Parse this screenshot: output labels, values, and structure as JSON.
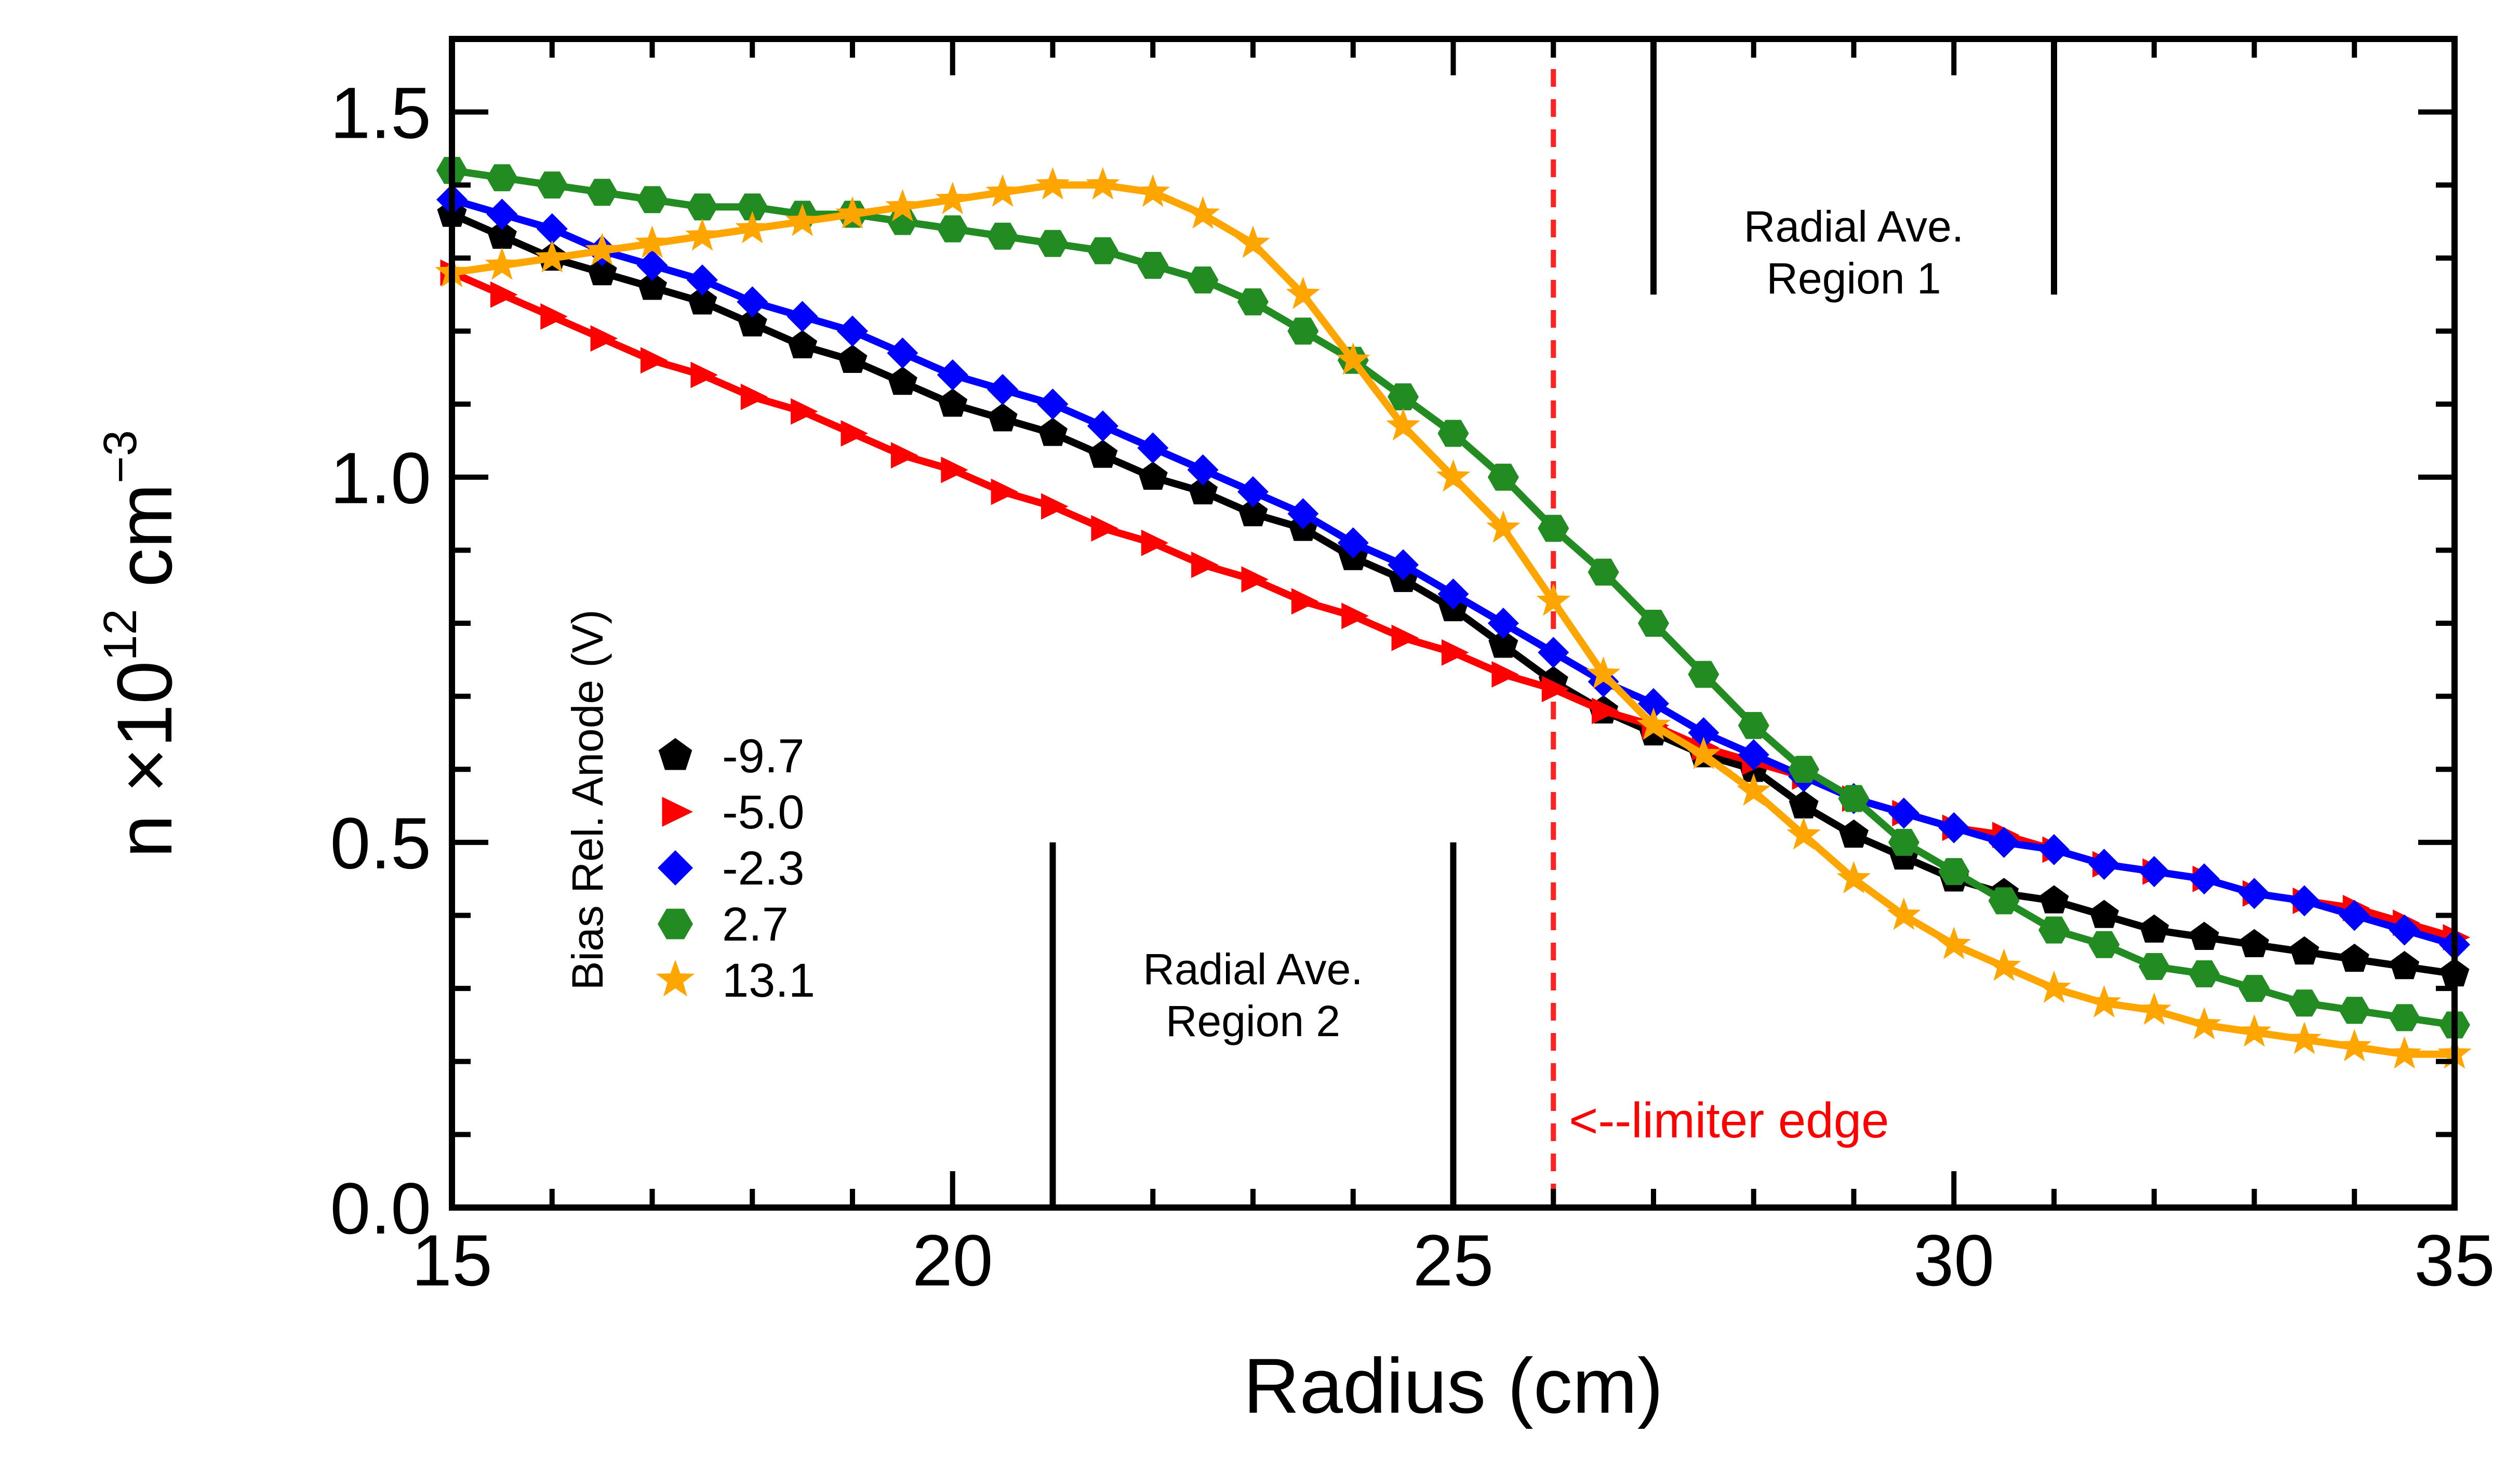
{
  "chart_data": {
    "type": "line",
    "xlabel": "Radius (cm)",
    "ylabel": {
      "base": "n ×10",
      "exp": "12",
      "unit": " cm",
      "unit_exp": "−3"
    },
    "xlim": [
      15,
      35
    ],
    "ylim": [
      0,
      1.6
    ],
    "x_ticks": [
      "15",
      "20",
      "25",
      "30",
      "35"
    ],
    "y_ticks": [
      "0.0",
      "0.5",
      "1.0",
      "1.5"
    ],
    "grid": false,
    "legend_title": "Bias Rel. Anode (V)",
    "legend_position": "lower-left",
    "x": [
      15.0,
      15.5,
      16.0,
      16.5,
      17.0,
      17.5,
      18.0,
      18.5,
      19.0,
      19.5,
      20.0,
      20.5,
      21.0,
      21.5,
      22.0,
      22.5,
      23.0,
      23.5,
      24.0,
      24.5,
      25.0,
      25.5,
      26.0,
      26.5,
      27.0,
      27.5,
      28.0,
      28.5,
      29.0,
      29.5,
      30.0,
      30.5,
      31.0,
      31.5,
      32.0,
      32.5,
      33.0,
      33.5,
      34.0,
      34.5,
      35.0
    ],
    "series": [
      {
        "name": "-9.7",
        "color": "#000000",
        "marker": "pentagon",
        "values": [
          1.36,
          1.33,
          1.3,
          1.28,
          1.26,
          1.24,
          1.21,
          1.18,
          1.16,
          1.13,
          1.1,
          1.08,
          1.06,
          1.03,
          1.0,
          0.98,
          0.95,
          0.93,
          0.89,
          0.86,
          0.82,
          0.77,
          0.72,
          0.68,
          0.65,
          0.62,
          0.6,
          0.55,
          0.51,
          0.48,
          0.45,
          0.43,
          0.42,
          0.4,
          0.38,
          0.37,
          0.36,
          0.35,
          0.34,
          0.33,
          0.32
        ]
      },
      {
        "name": "-5.0",
        "color": "#ff0000",
        "marker": "triangle-right",
        "values": [
          1.28,
          1.25,
          1.22,
          1.19,
          1.16,
          1.14,
          1.11,
          1.09,
          1.06,
          1.03,
          1.01,
          0.98,
          0.96,
          0.93,
          0.91,
          0.88,
          0.86,
          0.83,
          0.81,
          0.78,
          0.76,
          0.73,
          0.71,
          0.68,
          0.66,
          0.63,
          0.61,
          0.59,
          0.56,
          0.54,
          0.52,
          0.51,
          0.49,
          0.47,
          0.46,
          0.45,
          0.43,
          0.42,
          0.41,
          0.39,
          0.37
        ]
      },
      {
        "name": "-2.3",
        "color": "#0000ff",
        "marker": "diamond",
        "values": [
          1.38,
          1.36,
          1.34,
          1.31,
          1.29,
          1.27,
          1.24,
          1.22,
          1.2,
          1.17,
          1.14,
          1.12,
          1.1,
          1.07,
          1.04,
          1.01,
          0.98,
          0.95,
          0.91,
          0.88,
          0.84,
          0.8,
          0.76,
          0.72,
          0.69,
          0.65,
          0.62,
          0.59,
          0.56,
          0.54,
          0.52,
          0.5,
          0.49,
          0.47,
          0.46,
          0.45,
          0.43,
          0.42,
          0.4,
          0.38,
          0.36
        ]
      },
      {
        "name": "2.7",
        "color": "#228b22",
        "marker": "hexagon",
        "values": [
          1.42,
          1.41,
          1.4,
          1.39,
          1.38,
          1.37,
          1.37,
          1.36,
          1.36,
          1.35,
          1.34,
          1.33,
          1.32,
          1.31,
          1.29,
          1.27,
          1.24,
          1.2,
          1.16,
          1.11,
          1.06,
          1.0,
          0.93,
          0.87,
          0.8,
          0.73,
          0.66,
          0.6,
          0.56,
          0.5,
          0.46,
          0.42,
          0.38,
          0.36,
          0.33,
          0.32,
          0.3,
          0.28,
          0.27,
          0.26,
          0.25
        ]
      },
      {
        "name": "13.1",
        "color": "#ffa500",
        "marker": "star",
        "values": [
          1.28,
          1.29,
          1.3,
          1.31,
          1.32,
          1.33,
          1.34,
          1.35,
          1.36,
          1.37,
          1.38,
          1.39,
          1.4,
          1.4,
          1.39,
          1.36,
          1.32,
          1.25,
          1.16,
          1.07,
          1.0,
          0.93,
          0.83,
          0.73,
          0.66,
          0.62,
          0.57,
          0.51,
          0.45,
          0.4,
          0.36,
          0.33,
          0.3,
          0.28,
          0.27,
          0.25,
          0.24,
          0.23,
          0.22,
          0.21,
          0.21
        ]
      }
    ],
    "annotations": {
      "limiter_edge": {
        "x": 26,
        "label": "<--limiter edge",
        "color": "#ff0000"
      },
      "region1": {
        "x_range": [
          27,
          31
        ],
        "y_bottom": 1.25,
        "label_line1": "Radial Ave.",
        "label_line2": "Region 1"
      },
      "region2": {
        "x_range": [
          21,
          25
        ],
        "y_top": 0.5,
        "label_line1": "Radial Ave.",
        "label_line2": "Region 2"
      }
    }
  }
}
